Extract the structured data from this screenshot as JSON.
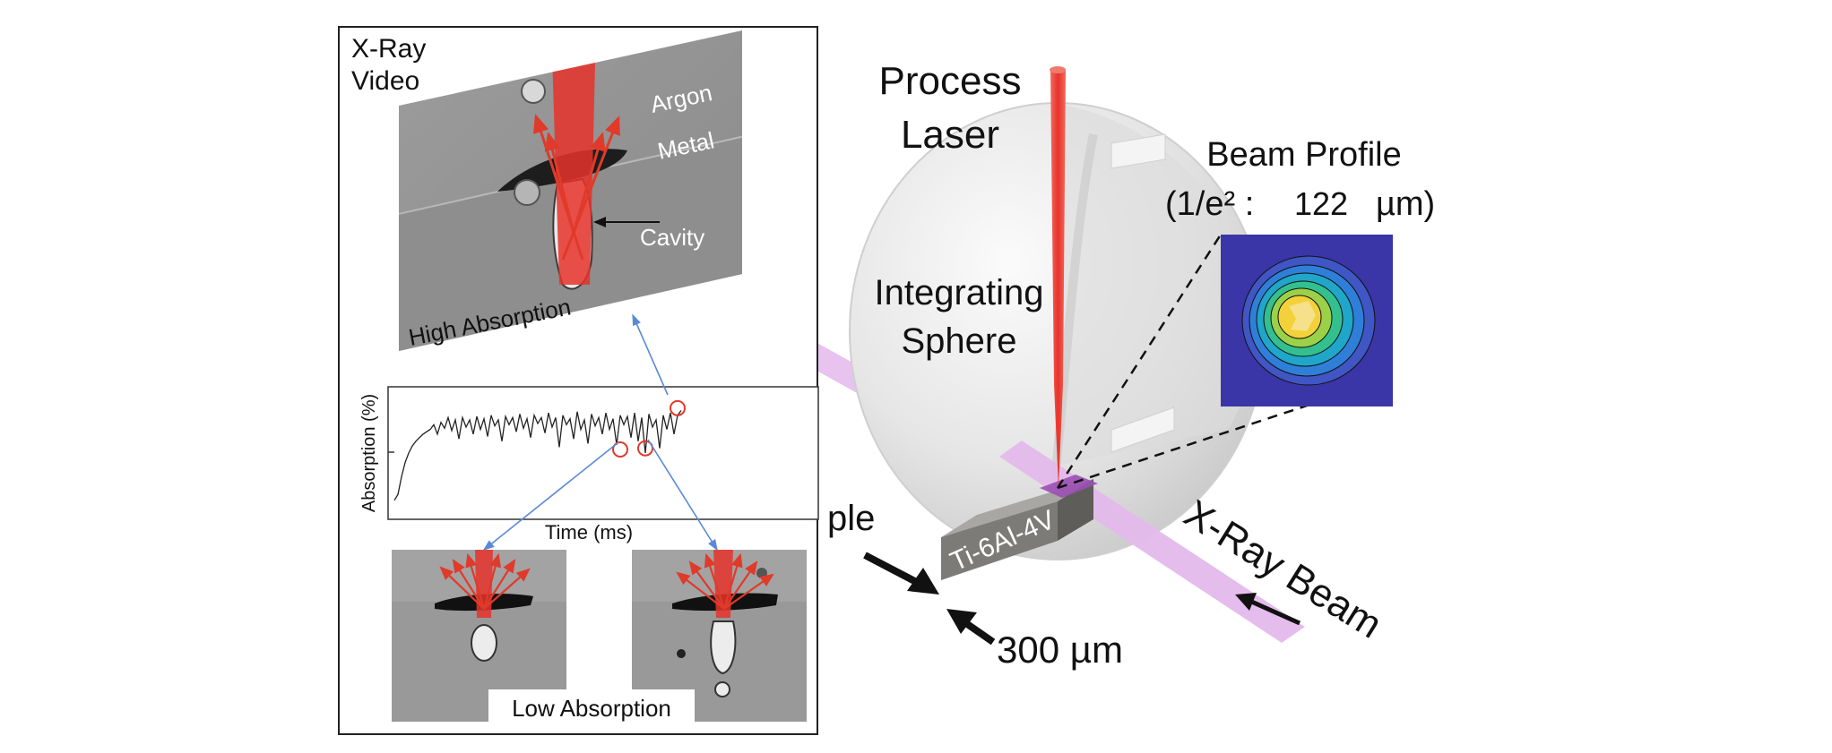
{
  "colors": {
    "laser": "#e8322b",
    "sphere": "#e7e7e7",
    "xray_beam": "#e4b9ec",
    "sample": "#7d7b78",
    "profile_bg": "#3a36a8",
    "arrow_blue": "#5a8ad6",
    "marker_red": "#e03a2a"
  },
  "inset": {
    "xray_video_title": "X-Ray\nVideo",
    "xray_video_line1": "X-Ray",
    "xray_video_line2": "Video",
    "label_argon": "Argon",
    "label_metal": "Metal",
    "label_cavity": "Cavity",
    "label_high_absorption": "High Absorption",
    "label_low_absorption": "Low Absorption",
    "plot_ylabel": "Absorption (%)",
    "plot_xlabel": "Time (ms)"
  },
  "scene": {
    "process_laser_line1": "Process",
    "process_laser_line2": "Laser",
    "integrating_sphere_line1": "Integrating",
    "integrating_sphere_line2": "Sphere",
    "beam_profile_line1": "Beam Profile",
    "beam_profile_prefix": "(1/e² :",
    "beam_profile_value": "122",
    "beam_profile_unit": "µm)",
    "sample_partial_label": "ple",
    "sample_material": "Ti-6Al-4V",
    "sample_thickness": "300 µm",
    "xray_beam_label": "X-Ray Beam"
  },
  "chart_data": {
    "type": "line",
    "title": "",
    "xlabel": "Time (ms)",
    "ylabel": "Absorption (%)",
    "series": [
      {
        "name": "absorption",
        "x": [
          0,
          1,
          2,
          3,
          4,
          5,
          6,
          7,
          8,
          9,
          10,
          11,
          12,
          13,
          14,
          15,
          16,
          17,
          18,
          19,
          20,
          21,
          22,
          23,
          24,
          25,
          26,
          27,
          28,
          29,
          30,
          31,
          32,
          33,
          34,
          35,
          36,
          37,
          38,
          39,
          40,
          41,
          42,
          43,
          44,
          45,
          46,
          47,
          48,
          49,
          50,
          51,
          52,
          53,
          54,
          55,
          56,
          57,
          58,
          59,
          60,
          61,
          62,
          63,
          64,
          65,
          66,
          67,
          68,
          69,
          70,
          71,
          72,
          73,
          74,
          75,
          76,
          77,
          78,
          79,
          80
        ],
        "values": [
          0.1,
          0.15,
          0.3,
          0.42,
          0.5,
          0.56,
          0.6,
          0.63,
          0.66,
          0.68,
          0.7,
          0.74,
          0.66,
          0.76,
          0.71,
          0.8,
          0.69,
          0.78,
          0.62,
          0.8,
          0.72,
          0.78,
          0.66,
          0.81,
          0.7,
          0.79,
          0.64,
          0.82,
          0.73,
          0.78,
          0.6,
          0.81,
          0.74,
          0.8,
          0.68,
          0.83,
          0.71,
          0.79,
          0.63,
          0.82,
          0.75,
          0.8,
          0.67,
          0.84,
          0.72,
          0.8,
          0.55,
          0.82,
          0.74,
          0.79,
          0.62,
          0.85,
          0.7,
          0.78,
          0.58,
          0.83,
          0.73,
          0.8,
          0.66,
          0.84,
          0.7,
          0.79,
          0.57,
          0.82,
          0.74,
          0.81,
          0.63,
          0.84,
          0.6,
          0.8,
          0.5,
          0.83,
          0.72,
          0.78,
          0.54,
          0.82,
          0.7,
          0.84,
          0.66,
          0.82,
          0.86
        ]
      }
    ],
    "markers": [
      {
        "x": 63,
        "y": 0.53
      },
      {
        "x": 70,
        "y": 0.54
      },
      {
        "x": 79,
        "y": 0.88
      }
    ],
    "xlim": [
      0,
      80
    ],
    "ylim": [
      0,
      1
    ]
  }
}
